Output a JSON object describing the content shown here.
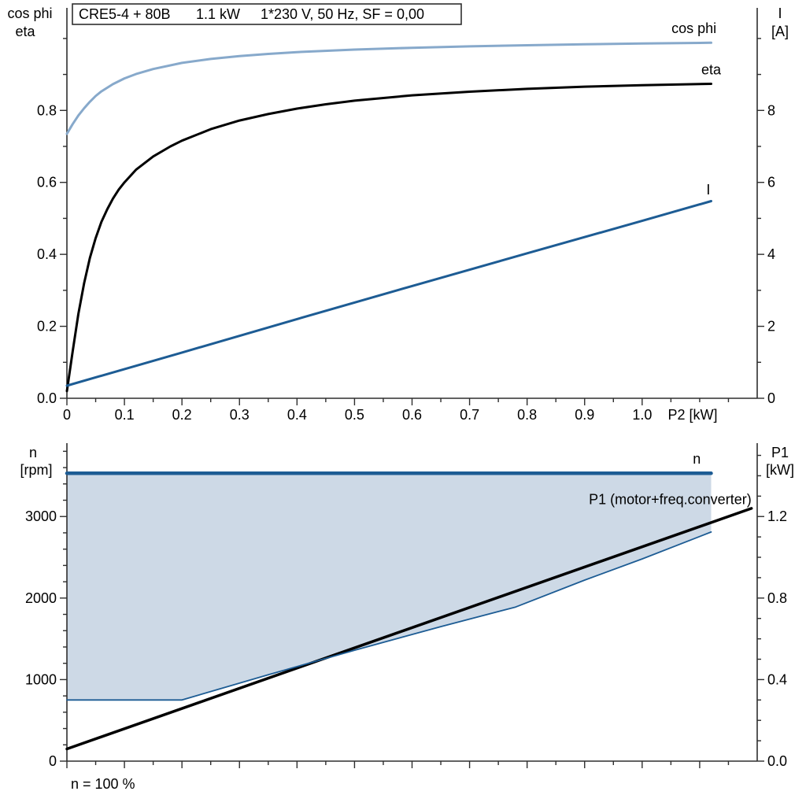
{
  "colors": {
    "light_blue": "#87a9cb",
    "dark_blue": "#1d5c94",
    "black": "#000000",
    "fill": "#cdd9e6",
    "axis": "#2e2e2e"
  },
  "chart_data": [
    {
      "type": "line",
      "title": "CRE5-4 + 80B   1.1 kW   1*230 V, 50 Hz, SF = 0,00",
      "title_parts": [
        "CRE5-4 + 80B",
        "1.1 kW",
        "1*230 V, 50 Hz, SF = 0,00"
      ],
      "x_axis": {
        "label": "P2 [kW]",
        "range": [
          0,
          1.2
        ],
        "major_ticks": [
          0,
          0.1,
          0.2,
          0.3,
          0.4,
          0.5,
          0.6,
          0.7,
          0.8,
          0.9,
          1.0
        ],
        "tick_labels": [
          "0",
          "0.1",
          "0.2",
          "0.3",
          "0.4",
          "0.5",
          "0.6",
          "0.7",
          "0.8",
          "0.9",
          "1.0"
        ],
        "minor_ticks": [
          0.05,
          0.15,
          0.25,
          0.35,
          0.45,
          0.55,
          0.65,
          0.75,
          0.85,
          0.95,
          1.05,
          1.1,
          1.15
        ]
      },
      "y_left": {
        "label_lines": [
          "cos phi",
          "eta"
        ],
        "range": [
          0,
          1.085
        ],
        "major_ticks": [
          0,
          0.2,
          0.4,
          0.6,
          0.8
        ],
        "tick_labels": [
          "0.0",
          "0.2",
          "0.4",
          "0.6",
          "0.8"
        ],
        "minor_ticks": [
          0.1,
          0.3,
          0.5,
          0.7,
          0.9,
          1.0
        ]
      },
      "y_right": {
        "label_lines": [
          "I",
          "[A]"
        ],
        "range": [
          0,
          10.85
        ],
        "major_ticks": [
          0,
          2,
          4,
          6,
          8
        ],
        "tick_labels": [
          "0",
          "2",
          "4",
          "6",
          "8"
        ],
        "minor_ticks": [
          1,
          3,
          5,
          7,
          9,
          10
        ]
      },
      "series": [
        {
          "name": "cos phi",
          "axis": "left",
          "color_key": "light_blue",
          "width": 3,
          "label": {
            "text": "cos phi",
            "x": 1.09,
            "y": 1.015,
            "anchor": "middle"
          },
          "points": [
            [
              0,
              0.735
            ],
            [
              0.01,
              0.762
            ],
            [
              0.02,
              0.786
            ],
            [
              0.03,
              0.806
            ],
            [
              0.04,
              0.824
            ],
            [
              0.05,
              0.84
            ],
            [
              0.06,
              0.853
            ],
            [
              0.08,
              0.873
            ],
            [
              0.1,
              0.889
            ],
            [
              0.12,
              0.901
            ],
            [
              0.15,
              0.915
            ],
            [
              0.2,
              0.932
            ],
            [
              0.25,
              0.943
            ],
            [
              0.3,
              0.951
            ],
            [
              0.35,
              0.957
            ],
            [
              0.4,
              0.962
            ],
            [
              0.5,
              0.969
            ],
            [
              0.6,
              0.974
            ],
            [
              0.7,
              0.978
            ],
            [
              0.8,
              0.981
            ],
            [
              0.9,
              0.984
            ],
            [
              1.0,
              0.986
            ],
            [
              1.12,
              0.988
            ]
          ]
        },
        {
          "name": "eta",
          "axis": "left",
          "color_key": "black",
          "width": 3,
          "label": {
            "text": "eta",
            "x": 1.12,
            "y": 0.9,
            "anchor": "middle"
          },
          "points": [
            [
              0,
              0.02
            ],
            [
              0.01,
              0.13
            ],
            [
              0.02,
              0.235
            ],
            [
              0.03,
              0.32
            ],
            [
              0.04,
              0.39
            ],
            [
              0.05,
              0.445
            ],
            [
              0.06,
              0.49
            ],
            [
              0.07,
              0.525
            ],
            [
              0.08,
              0.555
            ],
            [
              0.09,
              0.58
            ],
            [
              0.1,
              0.6
            ],
            [
              0.12,
              0.635
            ],
            [
              0.15,
              0.672
            ],
            [
              0.18,
              0.7
            ],
            [
              0.2,
              0.716
            ],
            [
              0.25,
              0.748
            ],
            [
              0.3,
              0.772
            ],
            [
              0.35,
              0.79
            ],
            [
              0.4,
              0.805
            ],
            [
              0.45,
              0.817
            ],
            [
              0.5,
              0.827
            ],
            [
              0.6,
              0.842
            ],
            [
              0.7,
              0.852
            ],
            [
              0.8,
              0.86
            ],
            [
              0.9,
              0.866
            ],
            [
              1.0,
              0.87
            ],
            [
              1.12,
              0.874
            ]
          ]
        },
        {
          "name": "I",
          "axis": "right",
          "color_key": "dark_blue",
          "width": 3,
          "label": {
            "text": "I",
            "x": 1.115,
            "y": 5.67,
            "anchor": "middle"
          },
          "points": [
            [
              0,
              0.35
            ],
            [
              0.2,
              1.27
            ],
            [
              0.4,
              2.2
            ],
            [
              0.6,
              3.12
            ],
            [
              0.8,
              4.03
            ],
            [
              1.0,
              4.93
            ],
            [
              1.12,
              5.48
            ]
          ]
        }
      ]
    },
    {
      "type": "line",
      "x_axis": {
        "label": "",
        "range": [
          0,
          1.2
        ],
        "major_ticks": [
          0,
          0.1,
          0.2,
          0.3,
          0.4,
          0.5,
          0.6,
          0.7,
          0.8,
          0.9,
          1.0,
          1.1
        ],
        "tick_labels": [],
        "minor_ticks": [
          0.05,
          0.15,
          0.25,
          0.35,
          0.45,
          0.55,
          0.65,
          0.75,
          0.85,
          0.95,
          1.05,
          1.15
        ]
      },
      "y_left": {
        "label_lines": [
          "n",
          "[rpm]"
        ],
        "range": [
          0,
          3900
        ],
        "major_ticks": [
          0,
          1000,
          2000,
          3000
        ],
        "tick_labels": [
          "0",
          "1000",
          "2000",
          "3000"
        ],
        "minor_ticks": [
          200,
          400,
          600,
          800,
          1200,
          1400,
          1600,
          1800,
          2200,
          2400,
          2600,
          2800,
          3200,
          3400,
          3600,
          3800
        ]
      },
      "y_right": {
        "label_lines": [
          "P1",
          "[kW]"
        ],
        "range": [
          0,
          1.56
        ],
        "major_ticks": [
          0,
          0.4,
          0.8,
          1.2
        ],
        "tick_labels": [
          "0.0",
          "0.4",
          "0.8",
          "1.2"
        ],
        "minor_ticks": [
          0.1,
          0.2,
          0.3,
          0.5,
          0.6,
          0.7,
          0.9,
          1.0,
          1.1,
          1.3,
          1.4,
          1.5
        ]
      },
      "fill_region": {
        "name": "speed-range",
        "color_key": "fill",
        "upper": [
          [
            0,
            3530
          ],
          [
            1.12,
            3530
          ]
        ],
        "lower": [
          [
            0,
            750
          ],
          [
            0.2,
            750
          ],
          [
            0.35,
            1060
          ],
          [
            0.5,
            1360
          ],
          [
            0.65,
            1650
          ],
          [
            0.78,
            1890
          ],
          [
            0.9,
            2220
          ],
          [
            1.0,
            2480
          ],
          [
            1.12,
            2810
          ]
        ]
      },
      "series": [
        {
          "name": "P1 (motor+freq.converter)",
          "axis": "right",
          "color_key": "black",
          "width": 3.5,
          "label": {
            "text": "P1 (motor+freq.converter)",
            "x": 1.19,
            "y": 1.26,
            "anchor": "end"
          },
          "points": [
            [
              0,
              0.06
            ],
            [
              1.19,
              1.24
            ]
          ]
        },
        {
          "name": "speed range lower limit",
          "axis": "left",
          "color_key": "dark_blue",
          "width": 1.8,
          "label": null,
          "points": [
            [
              0,
              750
            ],
            [
              0.2,
              750
            ],
            [
              0.35,
              1060
            ],
            [
              0.5,
              1360
            ],
            [
              0.65,
              1650
            ],
            [
              0.78,
              1890
            ],
            [
              0.9,
              2220
            ],
            [
              1.0,
              2480
            ],
            [
              1.12,
              2810
            ]
          ]
        },
        {
          "name": "n",
          "axis": "left",
          "color_key": "dark_blue",
          "width": 4.5,
          "label": {
            "text": "n",
            "x": 1.095,
            "y": 3650,
            "anchor": "middle"
          },
          "points": [
            [
              0,
              3530
            ],
            [
              1.12,
              3530
            ]
          ]
        }
      ],
      "footnote": "n = 100 %"
    }
  ]
}
